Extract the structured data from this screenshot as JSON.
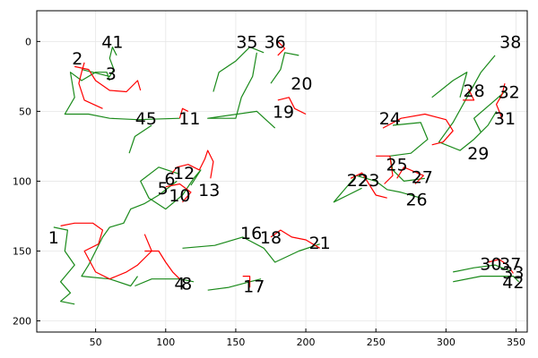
{
  "chart_data": {
    "type": "line",
    "title": "",
    "xlabel": "",
    "ylabel": "",
    "xlim": [
      8,
      358
    ],
    "ylim": [
      208,
      -22
    ],
    "y_axis_inverted": true,
    "grid": true,
    "legend": "none",
    "x_ticks": [
      50,
      100,
      150,
      200,
      250,
      300,
      350
    ],
    "y_ticks": [
      0,
      50,
      100,
      150,
      200
    ],
    "x_tick_labels": [
      "50",
      "100",
      "150",
      "200",
      "250",
      "300",
      "350"
    ],
    "y_tick_labels": [
      "0",
      "50",
      "100",
      "150",
      "200"
    ],
    "colors": {
      "track_a": "#1a8a1a",
      "track_b": "#ff0000"
    },
    "labels": [
      {
        "text": "1",
        "x": 20,
        "y": 140
      },
      {
        "text": "2",
        "x": 37,
        "y": 12
      },
      {
        "text": "3",
        "x": 61,
        "y": 23
      },
      {
        "text": "4",
        "x": 110,
        "y": 173
      },
      {
        "text": "5",
        "x": 98,
        "y": 105
      },
      {
        "text": "6",
        "x": 103,
        "y": 98
      },
      {
        "text": "8",
        "x": 115,
        "y": 173
      },
      {
        "text": "10",
        "x": 110,
        "y": 110
      },
      {
        "text": "11",
        "x": 117,
        "y": 55
      },
      {
        "text": "12",
        "x": 113,
        "y": 94
      },
      {
        "text": "13",
        "x": 131,
        "y": 106
      },
      {
        "text": "16",
        "x": 161,
        "y": 137
      },
      {
        "text": "17",
        "x": 163,
        "y": 175
      },
      {
        "text": "18",
        "x": 175,
        "y": 140
      },
      {
        "text": "19",
        "x": 184,
        "y": 50
      },
      {
        "text": "20",
        "x": 197,
        "y": 30
      },
      {
        "text": "21",
        "x": 210,
        "y": 144
      },
      {
        "text": "22",
        "x": 237,
        "y": 99
      },
      {
        "text": "23",
        "x": 245,
        "y": 99
      },
      {
        "text": "24",
        "x": 260,
        "y": 55
      },
      {
        "text": "25",
        "x": 265,
        "y": 88
      },
      {
        "text": "26",
        "x": 279,
        "y": 113
      },
      {
        "text": "27",
        "x": 283,
        "y": 97
      },
      {
        "text": "28",
        "x": 320,
        "y": 35
      },
      {
        "text": "29",
        "x": 323,
        "y": 80
      },
      {
        "text": "30",
        "x": 332,
        "y": 159
      },
      {
        "text": "31",
        "x": 342,
        "y": 55
      },
      {
        "text": "32",
        "x": 345,
        "y": 36
      },
      {
        "text": "33",
        "x": 348,
        "y": 165
      },
      {
        "text": "35",
        "x": 158,
        "y": 0
      },
      {
        "text": "36",
        "x": 178,
        "y": 0
      },
      {
        "text": "37",
        "x": 346,
        "y": 159
      },
      {
        "text": "38",
        "x": 346,
        "y": 0
      },
      {
        "text": "41",
        "x": 62,
        "y": 0
      },
      {
        "text": "42",
        "x": 348,
        "y": 172
      },
      {
        "text": "45",
        "x": 86,
        "y": 55
      }
    ],
    "tracks_green": [
      [
        [
          20,
          133
        ],
        [
          30,
          135
        ],
        [
          28,
          150
        ],
        [
          35,
          160
        ],
        [
          25,
          172
        ],
        [
          32,
          180
        ],
        [
          25,
          186
        ],
        [
          35,
          188
        ]
      ],
      [
        [
          60,
          28
        ],
        [
          58,
          22
        ],
        [
          50,
          22
        ],
        [
          40,
          28
        ],
        [
          32,
          22
        ],
        [
          35,
          40
        ],
        [
          28,
          52
        ],
        [
          45,
          52
        ],
        [
          60,
          55
        ],
        [
          80,
          56
        ],
        [
          110,
          55
        ]
      ],
      [
        [
          65,
          10
        ],
        [
          62,
          4
        ],
        [
          60,
          12
        ],
        [
          63,
          20
        ],
        [
          60,
          25
        ],
        [
          40,
          20
        ]
      ],
      [
        [
          90,
          60
        ],
        [
          78,
          68
        ],
        [
          74,
          80
        ]
      ],
      [
        [
          170,
          8
        ],
        [
          160,
          4
        ],
        [
          150,
          14
        ],
        [
          138,
          22
        ],
        [
          134,
          36
        ]
      ],
      [
        [
          165,
          8
        ],
        [
          162,
          25
        ],
        [
          154,
          40
        ],
        [
          150,
          55
        ],
        [
          130,
          55
        ],
        [
          165,
          50
        ],
        [
          178,
          62
        ]
      ],
      [
        [
          175,
          30
        ],
        [
          182,
          20
        ],
        [
          185,
          8
        ],
        [
          195,
          10
        ]
      ],
      [
        [
          108,
          100
        ],
        [
          95,
          110
        ],
        [
          85,
          116
        ],
        [
          75,
          120
        ],
        [
          70,
          130
        ],
        [
          60,
          133
        ],
        [
          55,
          140
        ],
        [
          45,
          160
        ],
        [
          40,
          168
        ],
        [
          60,
          170
        ],
        [
          75,
          175
        ],
        [
          80,
          168
        ]
      ],
      [
        [
          110,
          95
        ],
        [
          95,
          90
        ],
        [
          82,
          100
        ],
        [
          88,
          112
        ],
        [
          100,
          120
        ],
        [
          112,
          110
        ],
        [
          120,
          98
        ],
        [
          125,
          92
        ],
        [
          118,
          103
        ]
      ],
      [
        [
          78,
          175
        ],
        [
          90,
          170
        ],
        [
          110,
          170
        ],
        [
          120,
          172
        ]
      ],
      [
        [
          130,
          178
        ],
        [
          145,
          176
        ],
        [
          160,
          172
        ],
        [
          168,
          170
        ]
      ],
      [
        [
          112,
          148
        ],
        [
          135,
          146
        ],
        [
          155,
          140
        ],
        [
          170,
          148
        ],
        [
          178,
          158
        ],
        [
          195,
          150
        ],
        [
          210,
          145
        ]
      ],
      [
        [
          240,
          105
        ],
        [
          230,
          110
        ],
        [
          220,
          115
        ],
        [
          236,
          96
        ],
        [
          250,
          100
        ],
        [
          258,
          106
        ],
        [
          268,
          108
        ],
        [
          282,
          112
        ]
      ],
      [
        [
          262,
          60
        ],
        [
          282,
          58
        ],
        [
          287,
          70
        ],
        [
          275,
          80
        ],
        [
          260,
          82
        ],
        [
          262,
          92
        ],
        [
          270,
          100
        ],
        [
          285,
          98
        ]
      ],
      [
        [
          305,
          165
        ],
        [
          320,
          162
        ],
        [
          335,
          160
        ],
        [
          345,
          164
        ]
      ],
      [
        [
          305,
          172
        ],
        [
          325,
          168
        ],
        [
          348,
          168
        ],
        [
          352,
          172
        ]
      ],
      [
        [
          335,
          10
        ],
        [
          325,
          22
        ],
        [
          315,
          40
        ],
        [
          305,
          58
        ],
        [
          295,
          72
        ],
        [
          310,
          78
        ],
        [
          320,
          70
        ],
        [
          330,
          60
        ],
        [
          336,
          50
        ]
      ],
      [
        [
          343,
          35
        ],
        [
          335,
          42
        ],
        [
          320,
          55
        ],
        [
          325,
          65
        ]
      ],
      [
        [
          290,
          40
        ],
        [
          305,
          28
        ],
        [
          315,
          22
        ],
        [
          310,
          40
        ]
      ]
    ],
    "tracks_red": [
      [
        [
          25,
          132
        ],
        [
          35,
          130
        ],
        [
          48,
          130
        ],
        [
          55,
          135
        ],
        [
          52,
          145
        ],
        [
          42,
          150
        ],
        [
          50,
          165
        ],
        [
          60,
          170
        ],
        [
          72,
          165
        ],
        [
          80,
          160
        ],
        [
          90,
          150
        ],
        [
          85,
          138
        ]
      ],
      [
        [
          35,
          18
        ],
        [
          45,
          20
        ],
        [
          50,
          28
        ],
        [
          60,
          35
        ],
        [
          72,
          36
        ],
        [
          80,
          28
        ],
        [
          82,
          35
        ]
      ],
      [
        [
          42,
          15
        ],
        [
          40,
          22
        ],
        [
          38,
          30
        ],
        [
          42,
          42
        ],
        [
          55,
          48
        ]
      ],
      [
        [
          85,
          150
        ],
        [
          95,
          150
        ],
        [
          100,
          158
        ],
        [
          105,
          165
        ],
        [
          110,
          170
        ]
      ],
      [
        [
          104,
          95
        ],
        [
          108,
          90
        ],
        [
          116,
          88
        ],
        [
          124,
          92
        ],
        [
          128,
          84
        ],
        [
          130,
          78
        ],
        [
          134,
          86
        ],
        [
          132,
          98
        ]
      ],
      [
        [
          100,
          104
        ],
        [
          110,
          102
        ],
        [
          118,
          108
        ],
        [
          112,
          115
        ]
      ],
      [
        [
          110,
          55
        ],
        [
          112,
          48
        ],
        [
          116,
          50
        ]
      ],
      [
        [
          155,
          168
        ],
        [
          160,
          168
        ],
        [
          160,
          176
        ]
      ],
      [
        [
          175,
          140
        ],
        [
          182,
          135
        ],
        [
          190,
          140
        ],
        [
          200,
          142
        ],
        [
          210,
          148
        ]
      ],
      [
        [
          180,
          0
        ],
        [
          185,
          5
        ],
        [
          180,
          10
        ]
      ],
      [
        [
          180,
          42
        ],
        [
          188,
          40
        ],
        [
          192,
          48
        ],
        [
          200,
          52
        ]
      ],
      [
        [
          232,
          98
        ],
        [
          240,
          94
        ],
        [
          245,
          102
        ],
        [
          250,
          110
        ],
        [
          258,
          112
        ]
      ],
      [
        [
          250,
          82
        ],
        [
          260,
          82
        ],
        [
          262,
          96
        ],
        [
          256,
          102
        ]
      ],
      [
        [
          265,
          98
        ],
        [
          270,
          90
        ],
        [
          284,
          96
        ],
        [
          278,
          102
        ]
      ],
      [
        [
          255,
          62
        ],
        [
          268,
          55
        ],
        [
          285,
          52
        ],
        [
          300,
          56
        ],
        [
          305,
          64
        ],
        [
          298,
          72
        ],
        [
          290,
          74
        ]
      ],
      [
        [
          330,
          158
        ],
        [
          338,
          156
        ],
        [
          344,
          160
        ],
        [
          348,
          166
        ]
      ],
      [
        [
          340,
          55
        ],
        [
          336,
          45
        ],
        [
          340,
          38
        ],
        [
          342,
          30
        ]
      ],
      [
        [
          312,
          42
        ],
        [
          320,
          42
        ],
        [
          316,
          34
        ]
      ]
    ]
  }
}
